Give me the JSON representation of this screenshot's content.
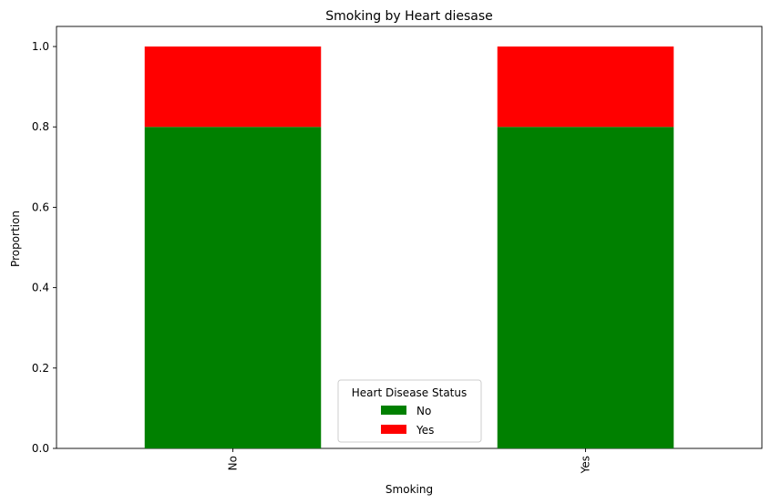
{
  "chart_data": {
    "type": "bar",
    "stacked": true,
    "title": "Smoking by Heart diesase",
    "xlabel": "Smoking",
    "ylabel": "Proportion",
    "categories": [
      "No",
      "Yes"
    ],
    "series": [
      {
        "name": "No",
        "color": "#008000",
        "values": [
          0.8,
          0.8
        ]
      },
      {
        "name": "Yes",
        "color": "#ff0000",
        "values": [
          0.2,
          0.2
        ]
      }
    ],
    "ylim": [
      0,
      1.05
    ],
    "yticks": [
      "0.0",
      "0.2",
      "0.4",
      "0.6",
      "0.8",
      "1.0"
    ],
    "grid": false,
    "legend": {
      "title": "Heart Disease Status",
      "position": "bottom-center"
    }
  }
}
